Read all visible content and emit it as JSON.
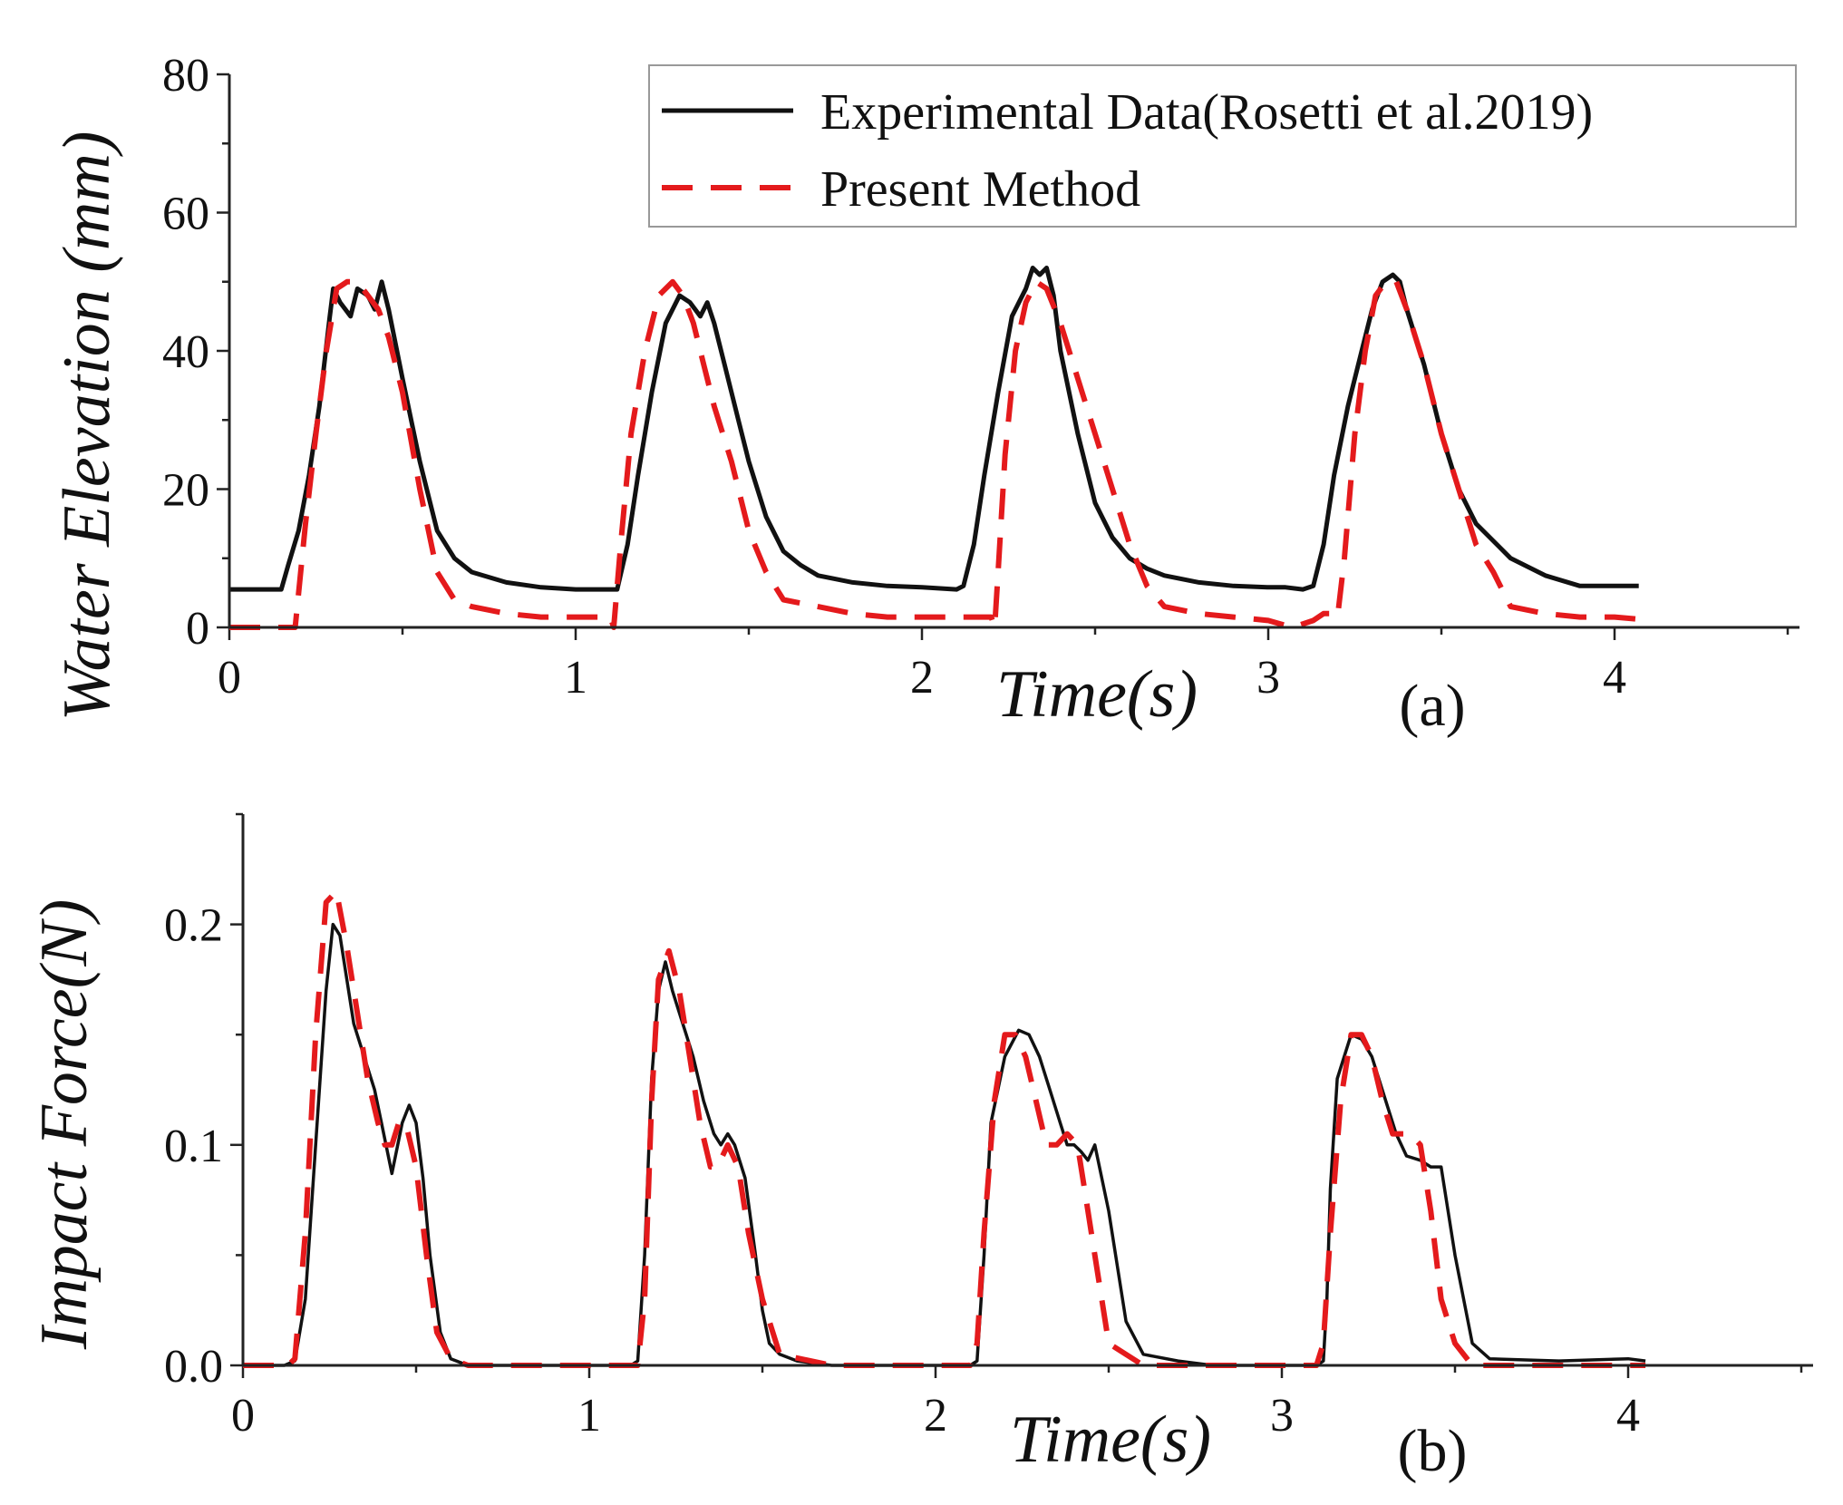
{
  "colors": {
    "experimental": "#111111",
    "present": "#e41a1c",
    "axis": "#222222",
    "legend_border": "#999999"
  },
  "legend": {
    "items": [
      {
        "label": "Experimental Data(Rosetti et al.2019)",
        "style": "solid",
        "color": "#111111"
      },
      {
        "label": "Present Method",
        "style": "dashed",
        "color": "#e41a1c"
      }
    ]
  },
  "chart_data": [
    {
      "type": "line",
      "tag": "(a)",
      "xlabel": "Time(s)",
      "ylabel": "Water Elevation (mm)",
      "xlim": [
        0,
        4.5
      ],
      "ylim": [
        0,
        80
      ],
      "xticks": [
        "0",
        "1",
        "2",
        "3",
        "4"
      ],
      "yticks": [
        "0",
        "20",
        "40",
        "60",
        "80"
      ],
      "legend_position": "top-right",
      "series": [
        {
          "name": "Experimental Data(Rosetti et al.2019)",
          "x": [
            0.0,
            0.15,
            0.17,
            0.2,
            0.23,
            0.26,
            0.29,
            0.3,
            0.32,
            0.35,
            0.37,
            0.4,
            0.42,
            0.44,
            0.46,
            0.5,
            0.55,
            0.6,
            0.65,
            0.7,
            0.8,
            0.9,
            1.0,
            1.1,
            1.12,
            1.15,
            1.18,
            1.22,
            1.26,
            1.3,
            1.33,
            1.36,
            1.38,
            1.4,
            1.43,
            1.47,
            1.5,
            1.55,
            1.6,
            1.65,
            1.7,
            1.8,
            1.9,
            2.0,
            2.1,
            2.12,
            2.15,
            2.18,
            2.22,
            2.26,
            2.3,
            2.32,
            2.34,
            2.36,
            2.38,
            2.4,
            2.45,
            2.5,
            2.55,
            2.6,
            2.65,
            2.7,
            2.8,
            2.9,
            3.0,
            3.05,
            3.1,
            3.13,
            3.16,
            3.19,
            3.23,
            3.27,
            3.3,
            3.33,
            3.36,
            3.38,
            3.4,
            3.45,
            3.5,
            3.55,
            3.6,
            3.7,
            3.8,
            3.9,
            4.0,
            4.07
          ],
          "y": [
            5.5,
            5.5,
            9,
            14,
            22,
            32,
            45,
            49,
            47,
            45,
            49,
            48,
            46,
            50,
            46,
            36,
            24,
            14,
            10,
            8,
            6.5,
            5.8,
            5.5,
            5.5,
            5.5,
            12,
            22,
            34,
            44,
            48,
            47,
            45,
            47,
            44,
            38,
            30,
            24,
            16,
            11,
            9,
            7.5,
            6.5,
            6,
            5.8,
            5.5,
            6,
            12,
            22,
            34,
            45,
            49,
            52,
            51,
            52,
            48,
            40,
            28,
            18,
            13,
            10,
            8.5,
            7.5,
            6.5,
            6,
            5.8,
            5.8,
            5.5,
            6,
            12,
            22,
            32,
            40,
            46,
            50,
            51,
            50,
            46,
            38,
            28,
            20,
            15,
            10,
            7.5,
            6,
            6,
            6
          ]
        },
        {
          "name": "Present Method",
          "x": [
            0.0,
            0.19,
            0.2,
            0.22,
            0.25,
            0.28,
            0.31,
            0.34,
            0.37,
            0.4,
            0.43,
            0.46,
            0.5,
            0.55,
            0.6,
            0.65,
            0.7,
            0.8,
            0.9,
            1.0,
            1.1,
            1.11,
            1.13,
            1.16,
            1.2,
            1.24,
            1.28,
            1.31,
            1.34,
            1.37,
            1.4,
            1.45,
            1.5,
            1.55,
            1.6,
            1.7,
            1.8,
            1.9,
            2.0,
            2.1,
            2.2,
            2.21,
            2.22,
            2.24,
            2.27,
            2.3,
            2.33,
            2.36,
            2.4,
            2.45,
            2.5,
            2.55,
            2.6,
            2.65,
            2.7,
            2.8,
            2.9,
            3.0,
            3.07,
            3.1,
            3.13,
            3.16,
            3.18,
            3.2,
            3.22,
            3.25,
            3.28,
            3.31,
            3.34,
            3.37,
            3.4,
            3.45,
            3.5,
            3.55,
            3.6,
            3.65,
            3.7,
            3.8,
            3.9,
            4.0,
            4.07
          ],
          "y": [
            0,
            0,
            5,
            15,
            28,
            40,
            49,
            50,
            50,
            48,
            46,
            42,
            34,
            20,
            8,
            4,
            3,
            2,
            1.5,
            1.5,
            1.5,
            0,
            12,
            28,
            40,
            48,
            50,
            48,
            44,
            38,
            32,
            24,
            14,
            8,
            4,
            3,
            2,
            1.5,
            1.5,
            1.5,
            1.5,
            0,
            8,
            25,
            40,
            47,
            50,
            49,
            44,
            36,
            28,
            20,
            12,
            6,
            3,
            2,
            1.5,
            1,
            0,
            0.5,
            1,
            2,
            2,
            1.5,
            10,
            28,
            40,
            48,
            50,
            50,
            46,
            38,
            28,
            20,
            12,
            8,
            3,
            2,
            1.5,
            1.5,
            1.2
          ]
        }
      ]
    },
    {
      "type": "line",
      "tag": "(b)",
      "xlabel": "Time(s)",
      "ylabel": "Impact Force(N)",
      "xlim": [
        0,
        4.5
      ],
      "ylim": [
        0,
        0.25
      ],
      "xticks": [
        "0",
        "1",
        "2",
        "3",
        "4"
      ],
      "yticks": [
        "0.0",
        "0.1",
        "0.2"
      ],
      "series": [
        {
          "name": "Experimental Data(Rosetti et al.2019)",
          "x": [
            0.0,
            0.12,
            0.15,
            0.18,
            0.21,
            0.24,
            0.26,
            0.28,
            0.3,
            0.32,
            0.35,
            0.38,
            0.4,
            0.43,
            0.46,
            0.48,
            0.5,
            0.52,
            0.54,
            0.57,
            0.6,
            0.65,
            0.7,
            0.8,
            1.0,
            1.12,
            1.14,
            1.16,
            1.18,
            1.2,
            1.22,
            1.24,
            1.26,
            1.28,
            1.3,
            1.33,
            1.36,
            1.38,
            1.4,
            1.42,
            1.45,
            1.48,
            1.5,
            1.52,
            1.55,
            1.6,
            1.7,
            1.8,
            2.0,
            2.1,
            2.12,
            2.14,
            2.16,
            2.2,
            2.24,
            2.27,
            2.3,
            2.33,
            2.36,
            2.38,
            2.4,
            2.42,
            2.44,
            2.46,
            2.5,
            2.55,
            2.6,
            2.7,
            2.8,
            3.0,
            3.1,
            3.12,
            3.13,
            3.14,
            3.16,
            3.2,
            3.23,
            3.26,
            3.3,
            3.33,
            3.36,
            3.4,
            3.43,
            3.46,
            3.5,
            3.55,
            3.6,
            3.8,
            4.0,
            4.05
          ],
          "y": [
            0,
            0,
            0.002,
            0.03,
            0.1,
            0.17,
            0.2,
            0.195,
            0.175,
            0.155,
            0.14,
            0.125,
            0.11,
            0.087,
            0.11,
            0.118,
            0.11,
            0.085,
            0.05,
            0.015,
            0.003,
            0,
            0,
            0,
            0,
            0,
            0.002,
            0.05,
            0.13,
            0.17,
            0.183,
            0.17,
            0.16,
            0.15,
            0.14,
            0.12,
            0.105,
            0.1,
            0.105,
            0.1,
            0.085,
            0.05,
            0.025,
            0.01,
            0.005,
            0.002,
            0,
            0,
            0,
            0,
            0.002,
            0.05,
            0.11,
            0.14,
            0.152,
            0.15,
            0.14,
            0.125,
            0.11,
            0.1,
            0.1,
            0.097,
            0.093,
            0.1,
            0.07,
            0.02,
            0.005,
            0.002,
            0,
            0,
            0,
            0.002,
            0.03,
            0.08,
            0.13,
            0.15,
            0.148,
            0.14,
            0.12,
            0.105,
            0.095,
            0.093,
            0.09,
            0.09,
            0.05,
            0.01,
            0.003,
            0.002,
            0.003,
            0.002
          ]
        },
        {
          "name": "Present Method",
          "x": [
            0.0,
            0.13,
            0.15,
            0.18,
            0.21,
            0.24,
            0.27,
            0.3,
            0.33,
            0.36,
            0.39,
            0.41,
            0.43,
            0.45,
            0.47,
            0.5,
            0.53,
            0.56,
            0.6,
            0.65,
            0.8,
            1.0,
            1.14,
            1.16,
            1.18,
            1.2,
            1.23,
            1.26,
            1.29,
            1.32,
            1.35,
            1.37,
            1.4,
            1.43,
            1.46,
            1.5,
            1.55,
            1.7,
            2.0,
            2.1,
            2.12,
            2.14,
            2.17,
            2.2,
            2.23,
            2.26,
            2.29,
            2.32,
            2.35,
            2.38,
            2.41,
            2.43,
            2.46,
            2.5,
            2.6,
            3.0,
            3.1,
            3.12,
            3.14,
            3.17,
            3.2,
            3.23,
            3.26,
            3.29,
            3.32,
            3.35,
            3.37,
            3.4,
            3.43,
            3.46,
            3.5,
            3.55,
            3.7,
            4.0,
            4.05
          ],
          "y": [
            0,
            0,
            0.003,
            0.06,
            0.15,
            0.21,
            0.215,
            0.19,
            0.16,
            0.13,
            0.11,
            0.1,
            0.1,
            0.11,
            0.11,
            0.09,
            0.05,
            0.015,
            0.003,
            0,
            0,
            0,
            0,
            0.03,
            0.12,
            0.175,
            0.188,
            0.17,
            0.14,
            0.11,
            0.09,
            0.09,
            0.1,
            0.09,
            0.06,
            0.03,
            0.005,
            0,
            0,
            0,
            0.01,
            0.06,
            0.12,
            0.15,
            0.15,
            0.14,
            0.12,
            0.1,
            0.1,
            0.105,
            0.1,
            0.08,
            0.05,
            0.01,
            0,
            0,
            0,
            0.01,
            0.06,
            0.12,
            0.15,
            0.15,
            0.14,
            0.12,
            0.105,
            0.105,
            0.105,
            0.1,
            0.07,
            0.03,
            0.01,
            0,
            0,
            0,
            0
          ]
        }
      ]
    }
  ]
}
